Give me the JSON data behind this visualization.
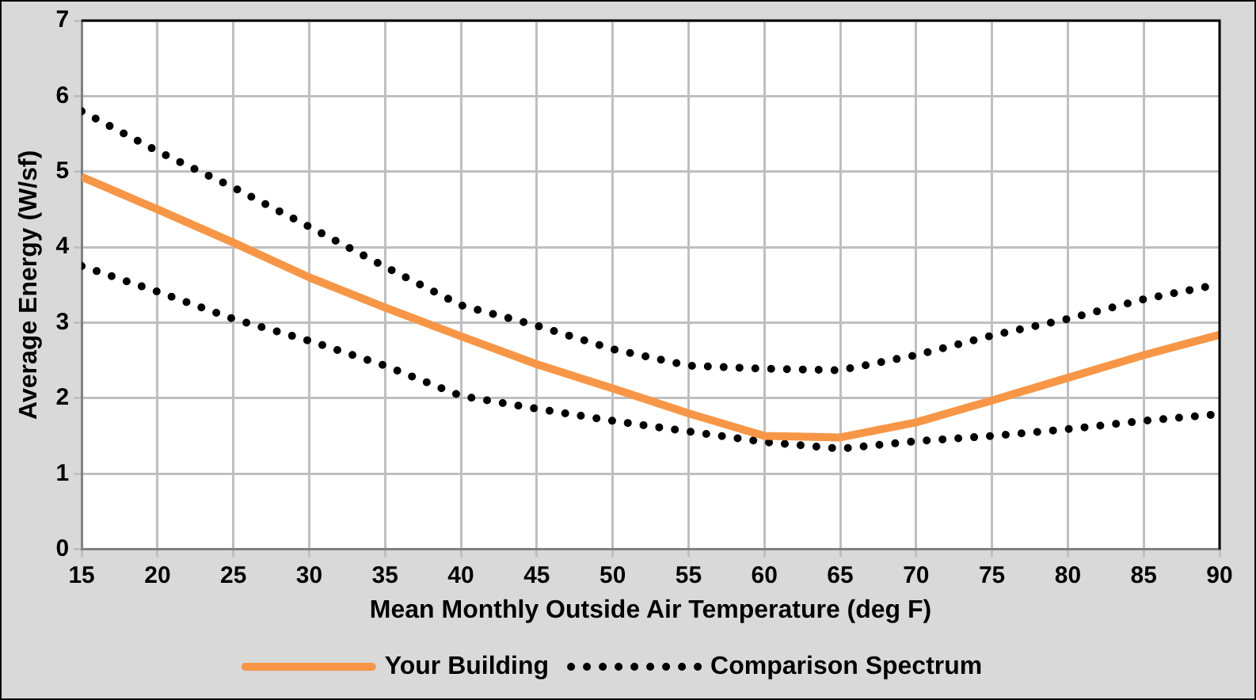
{
  "chart_data": {
    "type": "line",
    "xlabel": "Mean Monthly Outside Air Temperature (deg F)",
    "ylabel": "Average Energy (W/sf)",
    "x": [
      15,
      20,
      25,
      30,
      35,
      40,
      45,
      50,
      55,
      60,
      65,
      70,
      75,
      80,
      85,
      90
    ],
    "xlim": [
      15,
      90
    ],
    "xticks": [
      15,
      20,
      25,
      30,
      35,
      40,
      45,
      50,
      55,
      60,
      65,
      70,
      75,
      80,
      85,
      90
    ],
    "ylim": [
      0,
      7
    ],
    "yticks": [
      0,
      1,
      2,
      3,
      4,
      5,
      6,
      7
    ],
    "grid": true,
    "legend": "bottom",
    "marker": "none",
    "series": [
      {
        "name": "Your Building",
        "color": "#f79646",
        "line_style": "solid",
        "values": [
          4.93,
          4.5,
          4.06,
          3.6,
          3.2,
          2.82,
          2.45,
          2.13,
          1.8,
          1.5,
          1.48,
          1.68,
          1.97,
          2.27,
          2.57,
          2.84
        ]
      },
      {
        "name": "Comparison Spectrum",
        "color": "#000000",
        "line_style": "dotted",
        "values": [
          5.8,
          5.27,
          4.79,
          4.27,
          3.74,
          3.23,
          2.96,
          2.65,
          2.43,
          2.39,
          2.37,
          2.57,
          2.83,
          3.05,
          3.31,
          3.51
        ]
      },
      {
        "color": "#000000",
        "line_style": "dotted",
        "values": [
          3.75,
          3.41,
          3.05,
          2.76,
          2.43,
          2.03,
          1.86,
          1.7,
          1.56,
          1.42,
          1.33,
          1.43,
          1.5,
          1.59,
          1.7,
          1.79
        ]
      }
    ]
  }
}
